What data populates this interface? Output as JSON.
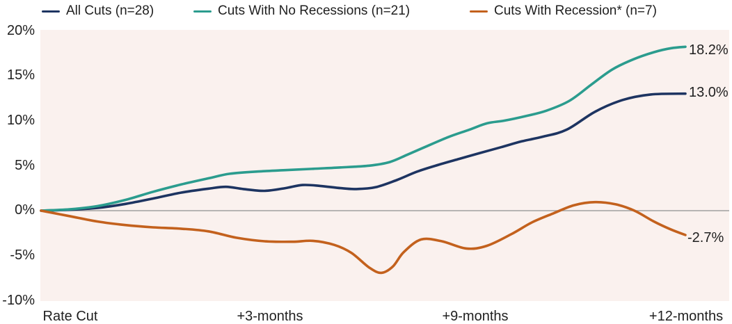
{
  "chart_data": {
    "type": "line",
    "title": "",
    "xlabel": "",
    "ylabel": "",
    "legend_position": "top",
    "grid": "zero-line-only",
    "plot_background": "#faf1ee",
    "zero_line_color": "#9f9f9f",
    "text_color": "#1f1f1f",
    "y_axis": {
      "range": [
        -10,
        20
      ],
      "ticks": [
        20,
        15,
        10,
        5,
        0,
        -5,
        -10
      ],
      "tick_labels": [
        "20%",
        "15%",
        "10%",
        "5%",
        "0%",
        "-5%",
        "-10%"
      ]
    },
    "x_axis": {
      "tick_labels": [
        "Rate Cut",
        "+3-months",
        "+9-months",
        "+12-months"
      ]
    },
    "series": [
      {
        "id": "all-cuts",
        "name": "All Cuts (n=28)",
        "color": "#1d3461",
        "end_label": "13.0%",
        "end_value": 13.0,
        "points": [
          [
            0.0,
            0
          ],
          [
            0.044,
            0.1
          ],
          [
            0.087,
            0.3
          ],
          [
            0.131,
            0.75
          ],
          [
            0.174,
            1.35
          ],
          [
            0.217,
            2.0
          ],
          [
            0.26,
            2.45
          ],
          [
            0.287,
            2.65
          ],
          [
            0.314,
            2.4
          ],
          [
            0.347,
            2.2
          ],
          [
            0.379,
            2.5
          ],
          [
            0.406,
            2.85
          ],
          [
            0.433,
            2.75
          ],
          [
            0.465,
            2.5
          ],
          [
            0.489,
            2.4
          ],
          [
            0.519,
            2.6
          ],
          [
            0.552,
            3.4
          ],
          [
            0.584,
            4.35
          ],
          [
            0.617,
            5.1
          ],
          [
            0.649,
            5.75
          ],
          [
            0.681,
            6.4
          ],
          [
            0.714,
            7.05
          ],
          [
            0.746,
            7.7
          ],
          [
            0.778,
            8.2
          ],
          [
            0.816,
            9.0
          ],
          [
            0.86,
            11.0
          ],
          [
            0.903,
            12.3
          ],
          [
            0.946,
            12.9
          ],
          [
            1.0,
            13.0
          ]
        ]
      },
      {
        "id": "no-recession",
        "name": "Cuts With No Recessions (n=21)",
        "color": "#2b9c8e",
        "end_label": "18.2%",
        "end_value": 18.2,
        "points": [
          [
            0.0,
            0
          ],
          [
            0.044,
            0.15
          ],
          [
            0.087,
            0.5
          ],
          [
            0.131,
            1.2
          ],
          [
            0.174,
            2.1
          ],
          [
            0.217,
            2.9
          ],
          [
            0.26,
            3.6
          ],
          [
            0.293,
            4.1
          ],
          [
            0.336,
            4.35
          ],
          [
            0.379,
            4.5
          ],
          [
            0.422,
            4.65
          ],
          [
            0.465,
            4.8
          ],
          [
            0.509,
            5.0
          ],
          [
            0.541,
            5.4
          ],
          [
            0.568,
            6.2
          ],
          [
            0.6,
            7.2
          ],
          [
            0.633,
            8.2
          ],
          [
            0.665,
            9.0
          ],
          [
            0.692,
            9.7
          ],
          [
            0.719,
            10.0
          ],
          [
            0.752,
            10.5
          ],
          [
            0.784,
            11.1
          ],
          [
            0.82,
            12.2
          ],
          [
            0.854,
            14.0
          ],
          [
            0.887,
            15.7
          ],
          [
            0.919,
            16.8
          ],
          [
            0.951,
            17.6
          ],
          [
            0.978,
            18.05
          ],
          [
            1.0,
            18.2
          ]
        ]
      },
      {
        "id": "recession",
        "name": "Cuts With Recession* (n=7)",
        "color": "#c3611d",
        "end_label": "-2.7%",
        "end_value": -2.7,
        "points": [
          [
            0.0,
            0
          ],
          [
            0.044,
            -0.6
          ],
          [
            0.087,
            -1.2
          ],
          [
            0.131,
            -1.6
          ],
          [
            0.174,
            -1.85
          ],
          [
            0.217,
            -2.0
          ],
          [
            0.26,
            -2.3
          ],
          [
            0.303,
            -3.0
          ],
          [
            0.347,
            -3.4
          ],
          [
            0.39,
            -3.45
          ],
          [
            0.422,
            -3.35
          ],
          [
            0.455,
            -3.8
          ],
          [
            0.482,
            -4.7
          ],
          [
            0.509,
            -6.3
          ],
          [
            0.528,
            -6.9
          ],
          [
            0.546,
            -6.2
          ],
          [
            0.563,
            -4.6
          ],
          [
            0.59,
            -3.2
          ],
          [
            0.622,
            -3.4
          ],
          [
            0.66,
            -4.2
          ],
          [
            0.692,
            -3.9
          ],
          [
            0.73,
            -2.6
          ],
          [
            0.762,
            -1.3
          ],
          [
            0.795,
            -0.3
          ],
          [
            0.827,
            0.6
          ],
          [
            0.86,
            0.95
          ],
          [
            0.892,
            0.7
          ],
          [
            0.921,
            0.0
          ],
          [
            0.951,
            -1.2
          ],
          [
            0.978,
            -2.1
          ],
          [
            1.0,
            -2.7
          ]
        ]
      }
    ]
  }
}
